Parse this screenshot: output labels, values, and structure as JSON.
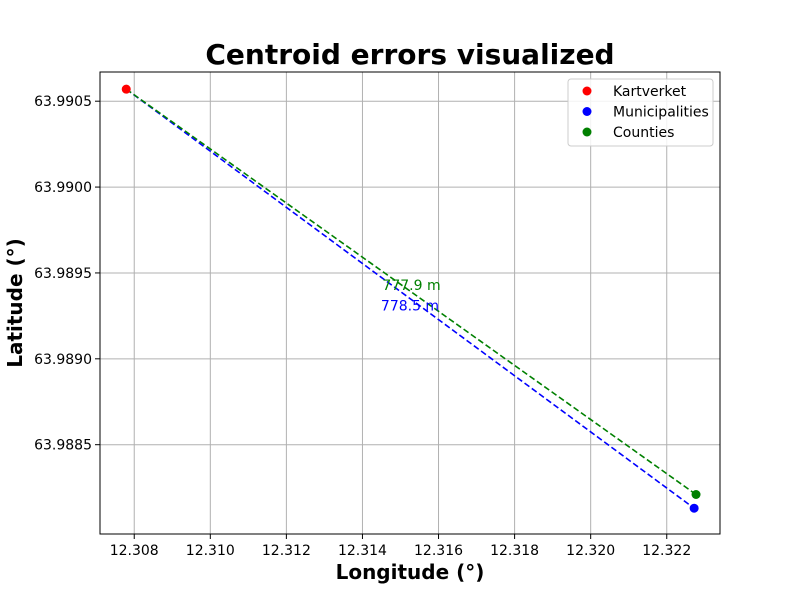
{
  "chart_data": {
    "type": "scatter",
    "title": "Centroid errors visualized",
    "xlabel": "Longitude (°)",
    "ylabel": "Latitude (°)",
    "xlim": [
      12.3071,
      12.3234
    ],
    "ylim": [
      63.98798,
      63.99067
    ],
    "xticks": [
      12.308,
      12.31,
      12.312,
      12.314,
      12.316,
      12.318,
      12.32,
      12.322
    ],
    "xtick_labels": [
      "12.308",
      "12.310",
      "12.312",
      "12.314",
      "12.316",
      "12.318",
      "12.320",
      "12.322"
    ],
    "yticks": [
      63.9885,
      63.989,
      63.9895,
      63.99,
      63.9905
    ],
    "ytick_labels": [
      "63.9885",
      "63.9890",
      "63.9895",
      "63.9900",
      "63.9905"
    ],
    "grid": true,
    "legend_position": "top-right",
    "series": [
      {
        "name": "Kartverket",
        "color": "#ff0000",
        "x": [
          12.30779
        ],
        "y": [
          63.99057
        ]
      },
      {
        "name": "Municipalities",
        "color": "#0000ff",
        "x": [
          12.32272
        ],
        "y": [
          63.98813
        ]
      },
      {
        "name": "Counties",
        "color": "#008000",
        "x": [
          12.32277
        ],
        "y": [
          63.98821
        ]
      }
    ],
    "lines": [
      {
        "from": "Kartverket",
        "to": "Municipalities",
        "color": "#0000ff",
        "style": "dashed",
        "label": "778.5 m",
        "label_at": [
          12.31525,
          63.98931
        ]
      },
      {
        "from": "Kartverket",
        "to": "Counties",
        "color": "#008000",
        "style": "dashed",
        "label": "777.9 m",
        "label_at": [
          12.31529,
          63.98943
        ]
      }
    ]
  }
}
